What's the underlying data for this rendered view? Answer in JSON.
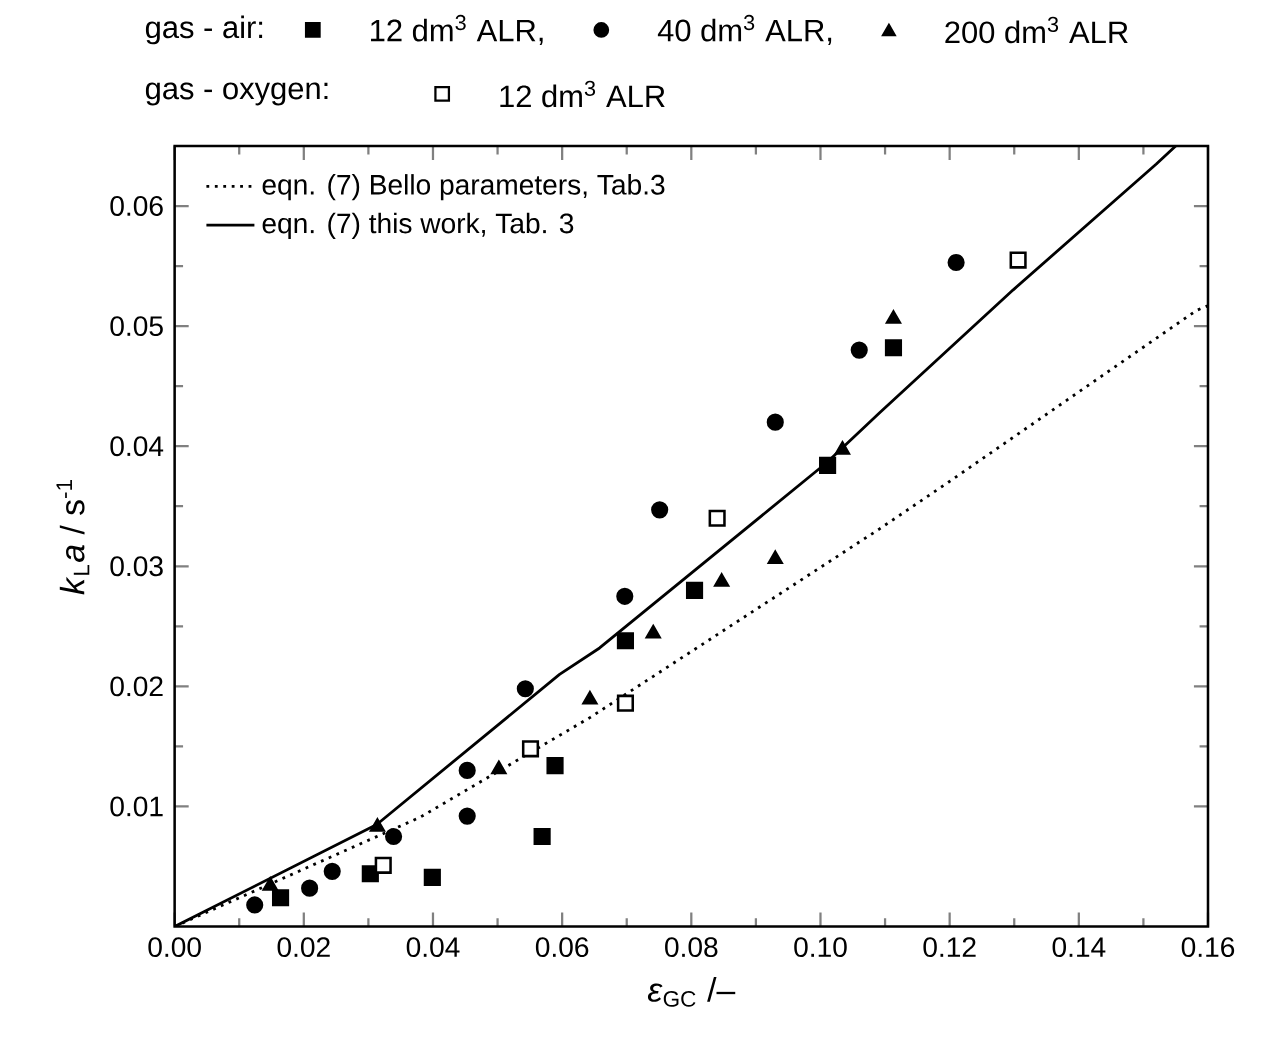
{
  "chart_data": {
    "type": "scatter",
    "xlabel": "*ε*$_{GC}$ /–",
    "ylabel": "*k*$_{L}$*a* / s$^{-1}$",
    "annotations": [
      "gas - air:",
      "gas - oxygen:"
    ],
    "xlim": [
      0,
      0.16
    ],
    "ylim": [
      0,
      0.065
    ],
    "xticks": [
      {
        "value": 0,
        "label": "0.00"
      },
      {
        "value": 0.02,
        "label": "0.02"
      },
      {
        "value": 0.04,
        "label": "0.04"
      },
      {
        "value": 0.06,
        "label": "0.06"
      },
      {
        "value": 0.08,
        "label": "0.08"
      },
      {
        "value": 0.1,
        "label": "0.10"
      },
      {
        "value": 0.12,
        "label": "0.12"
      },
      {
        "value": 0.14,
        "label": "0.14"
      },
      {
        "value": 0.16,
        "label": "0.16"
      }
    ],
    "yticks": [
      0.01,
      0.02,
      0.03,
      0.04,
      0.05,
      0.06
    ],
    "legend": "top left",
    "series": [
      {
        "name": "12 dm$^{3}$ ALR,",
        "marker": "square",
        "color": "#000000",
        "x": [
          0.0164,
          0.0303,
          0.0399,
          0.0569,
          0.0589,
          0.0698,
          0.0805,
          0.1011,
          0.1113
        ],
        "values": [
          0.0024,
          0.0044,
          0.0041,
          0.0075,
          0.0134,
          0.0238,
          0.028,
          0.0384,
          0.0482
        ]
      },
      {
        "name": "40 dm$^{3}$ ALR,",
        "marker": "circle",
        "color": "#000000",
        "x": [
          0.0124,
          0.0209,
          0.0244,
          0.0339,
          0.0453,
          0.0453,
          0.0543,
          0.0697,
          0.0751,
          0.093,
          0.106,
          0.121
        ],
        "values": [
          0.0018,
          0.0032,
          0.0046,
          0.0075,
          0.0092,
          0.013,
          0.0198,
          0.0275,
          0.0347,
          0.042,
          0.048,
          0.0553
        ]
      },
      {
        "name": "200 dm$^{3}$ ALR",
        "marker": "triangle",
        "color": "#000000",
        "x": [
          0.0148,
          0.0314,
          0.0502,
          0.0643,
          0.0741,
          0.0847,
          0.093,
          0.1034,
          0.1113
        ],
        "values": [
          0.0034,
          0.0083,
          0.0131,
          0.0189,
          0.0244,
          0.0287,
          0.0306,
          0.0397,
          0.0506
        ]
      },
      {
        "name": "12 dm$^{3}$ ALR",
        "marker": "square",
        "color": "#ffffff",
        "x": [
          0.0323,
          0.0551,
          0.0698,
          0.084,
          0.1306
        ],
        "values": [
          0.0051,
          0.0148,
          0.0186,
          0.034,
          0.0555
        ]
      },
      {
        "name": "eqn. (7) Bello parameters, Tab.3",
        "type": "line",
        "line_style": "dotted",
        "marker": "none",
        "color": "#000000",
        "x": [
          0,
          0.038,
          0.0643,
          0.1091,
          0.1198,
          0.1582,
          0.16
        ],
        "values": [
          0,
          0.0091,
          0.0174,
          0.0331,
          0.037,
          0.0513,
          0.0517
        ]
      },
      {
        "name": "eqn. (7) this work, Tab. 3",
        "type": "line",
        "line_style": "solid",
        "marker": "none",
        "color": "#000000",
        "x": [
          0,
          0.0313,
          0.0596,
          0.0658,
          0.1009,
          0.1092,
          0.1298,
          0.152,
          0.155
        ],
        "values": [
          0,
          0.0085,
          0.021,
          0.0232,
          0.0386,
          0.0428,
          0.053,
          0.0635,
          0.065
        ]
      }
    ]
  }
}
